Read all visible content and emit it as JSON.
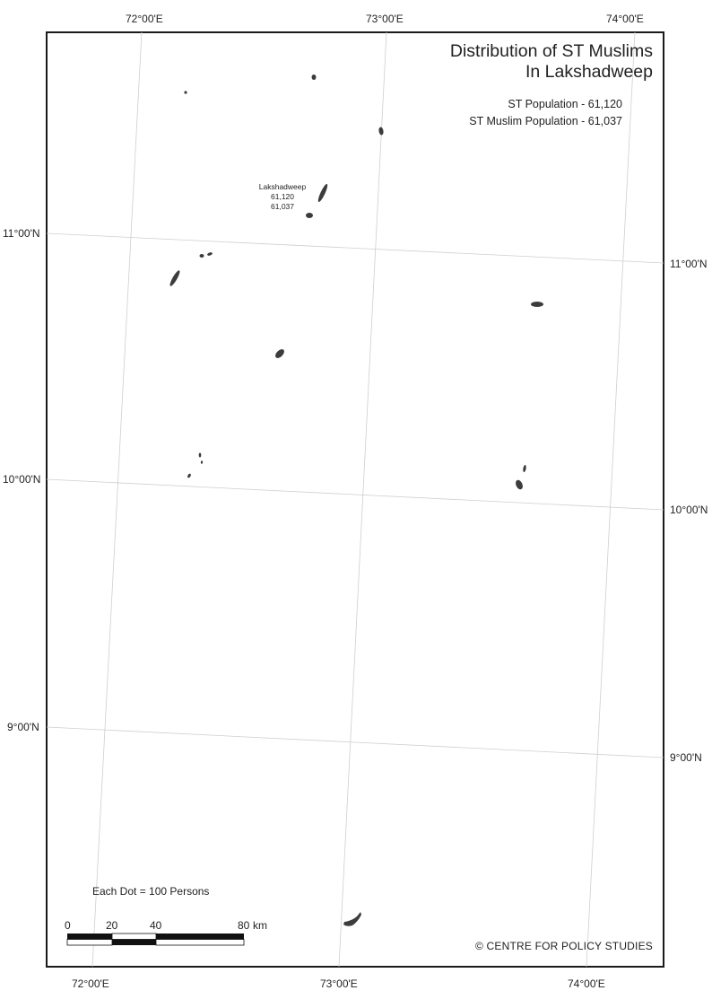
{
  "title_lines": [
    "Distribution of ST Muslims",
    "In Lakshadweep"
  ],
  "stats": {
    "st_population": "ST Population - 61,120",
    "st_muslim_population": "ST Muslim Population - 61,037"
  },
  "island_label": {
    "name": "Lakshadweep",
    "st_population": "61,120",
    "st_muslim_population": "61,037"
  },
  "graticule": {
    "longitudes": [
      "72°00'E",
      "73°00'E",
      "74°00'E"
    ],
    "latitudes": [
      "11°00'N",
      "10°00'N",
      "9°00'N"
    ]
  },
  "legend": {
    "dot_value": "Each Dot = 100 Persons"
  },
  "scale_bar": {
    "ticks": [
      "0",
      "20",
      "40",
      "80"
    ],
    "unit": "km"
  },
  "credit": "© CENTRE FOR POLICY STUDIES",
  "colors": {
    "land": "#3c3c3c",
    "grid": "#c8c8c8",
    "frame": "#1a1a1a"
  }
}
